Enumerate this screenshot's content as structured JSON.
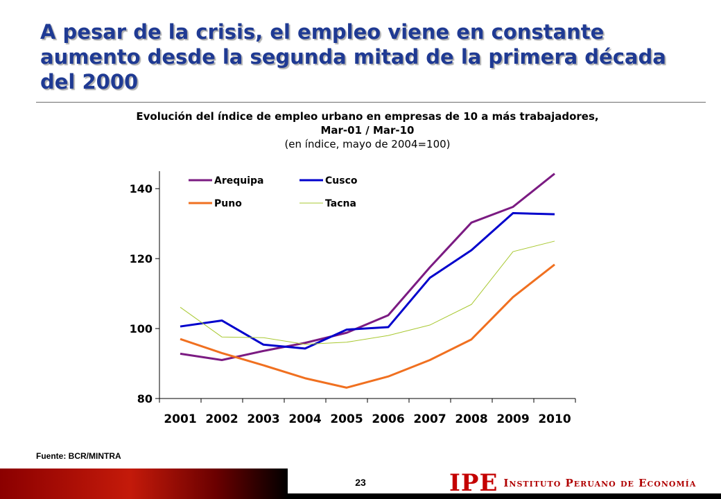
{
  "slide": {
    "title": "A pesar de la crisis, el empleo viene en constante aumento desde la segunda mitad de la primera década del 2000",
    "source": "Fuente: BCR/MINTRA",
    "page_number": "23"
  },
  "logo": {
    "abbr": "IPE",
    "full": "Instituto Peruano de Economía"
  },
  "chart_data": {
    "type": "line",
    "title": "Evolución del índice de empleo urbano en empresas de 10 a más trabajadores, Mar-01 / Mar-10",
    "subtitle": "(en índice, mayo de 2004=100)",
    "xlabel": "",
    "ylabel": "",
    "ylim": [
      80,
      145
    ],
    "yticks": [
      "140",
      "120",
      "100",
      "80"
    ],
    "categories": [
      "2001",
      "2002",
      "2003",
      "2004",
      "2005",
      "2006",
      "2007",
      "2008",
      "2009",
      "2010"
    ],
    "legend_position": "top-left",
    "grid": false,
    "series": [
      {
        "name": "Arequipa",
        "color": "#7b1b82",
        "values": [
          92.8,
          91.0,
          93.6,
          95.9,
          98.8,
          103.8,
          117.5,
          130.3,
          134.8,
          144.3
        ]
      },
      {
        "name": "Cusco",
        "color": "#0000cc",
        "values": [
          100.6,
          102.3,
          95.4,
          94.3,
          99.7,
          100.4,
          114.5,
          122.4,
          133.0,
          132.7
        ]
      },
      {
        "name": "Puno",
        "color": "#f07020",
        "values": [
          97.0,
          93.0,
          89.5,
          85.8,
          83.1,
          86.3,
          91.0,
          96.9,
          109.0,
          118.3
        ]
      },
      {
        "name": "Tacna",
        "color": "#a8c830",
        "values": [
          106.1,
          97.6,
          97.4,
          95.5,
          96.1,
          98.0,
          101.0,
          106.9,
          122.0,
          125.0
        ]
      }
    ]
  }
}
